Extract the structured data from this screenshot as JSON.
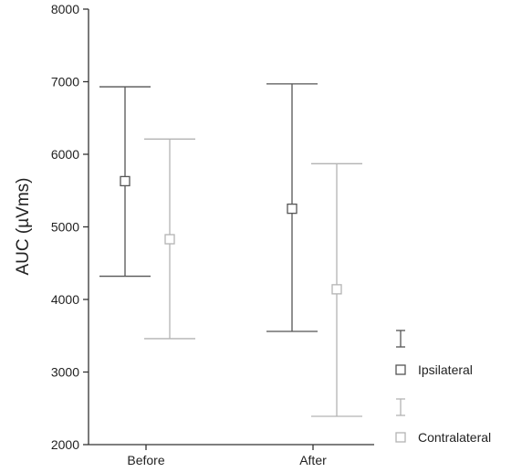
{
  "chart_data": {
    "type": "scatter",
    "title": "",
    "xlabel": "",
    "ylabel": "AUC (µVms)",
    "categories": [
      "Before",
      "After"
    ],
    "ylim": [
      2000,
      8000
    ],
    "yticks": [
      2000,
      3000,
      4000,
      5000,
      6000,
      7000,
      8000
    ],
    "grid": false,
    "legend": "right",
    "series": [
      {
        "name": "Ipsilateral",
        "color": "#555555",
        "marker": "open-square",
        "mean": [
          5630,
          5250
        ],
        "lower": [
          4320,
          3560
        ],
        "upper": [
          6930,
          6970
        ]
      },
      {
        "name": "Contralateral",
        "color": "#b3b3b3",
        "marker": "open-square",
        "mean": [
          4830,
          4140
        ],
        "lower": [
          3460,
          2390
        ],
        "upper": [
          6210,
          5870
        ]
      }
    ]
  }
}
